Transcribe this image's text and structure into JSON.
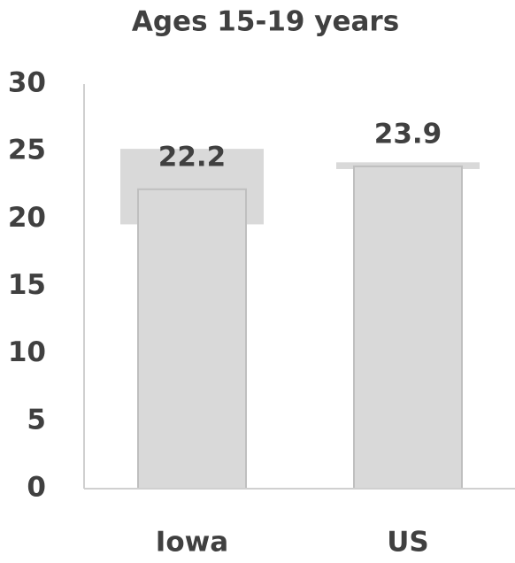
{
  "chart_data": {
    "type": "bar",
    "title": "Ages 15-19 years",
    "categories": [
      "Iowa",
      "US"
    ],
    "values": [
      22.2,
      23.9
    ],
    "ci_low": [
      19.6,
      23.7
    ],
    "ci_high": [
      25.2,
      24.2
    ],
    "color": "#d9d9d9",
    "ci_color": "#d9d9d9",
    "ylim": [
      0,
      30
    ],
    "yticks": [
      0,
      5,
      10,
      15,
      20,
      25,
      30
    ],
    "grid": false
  }
}
